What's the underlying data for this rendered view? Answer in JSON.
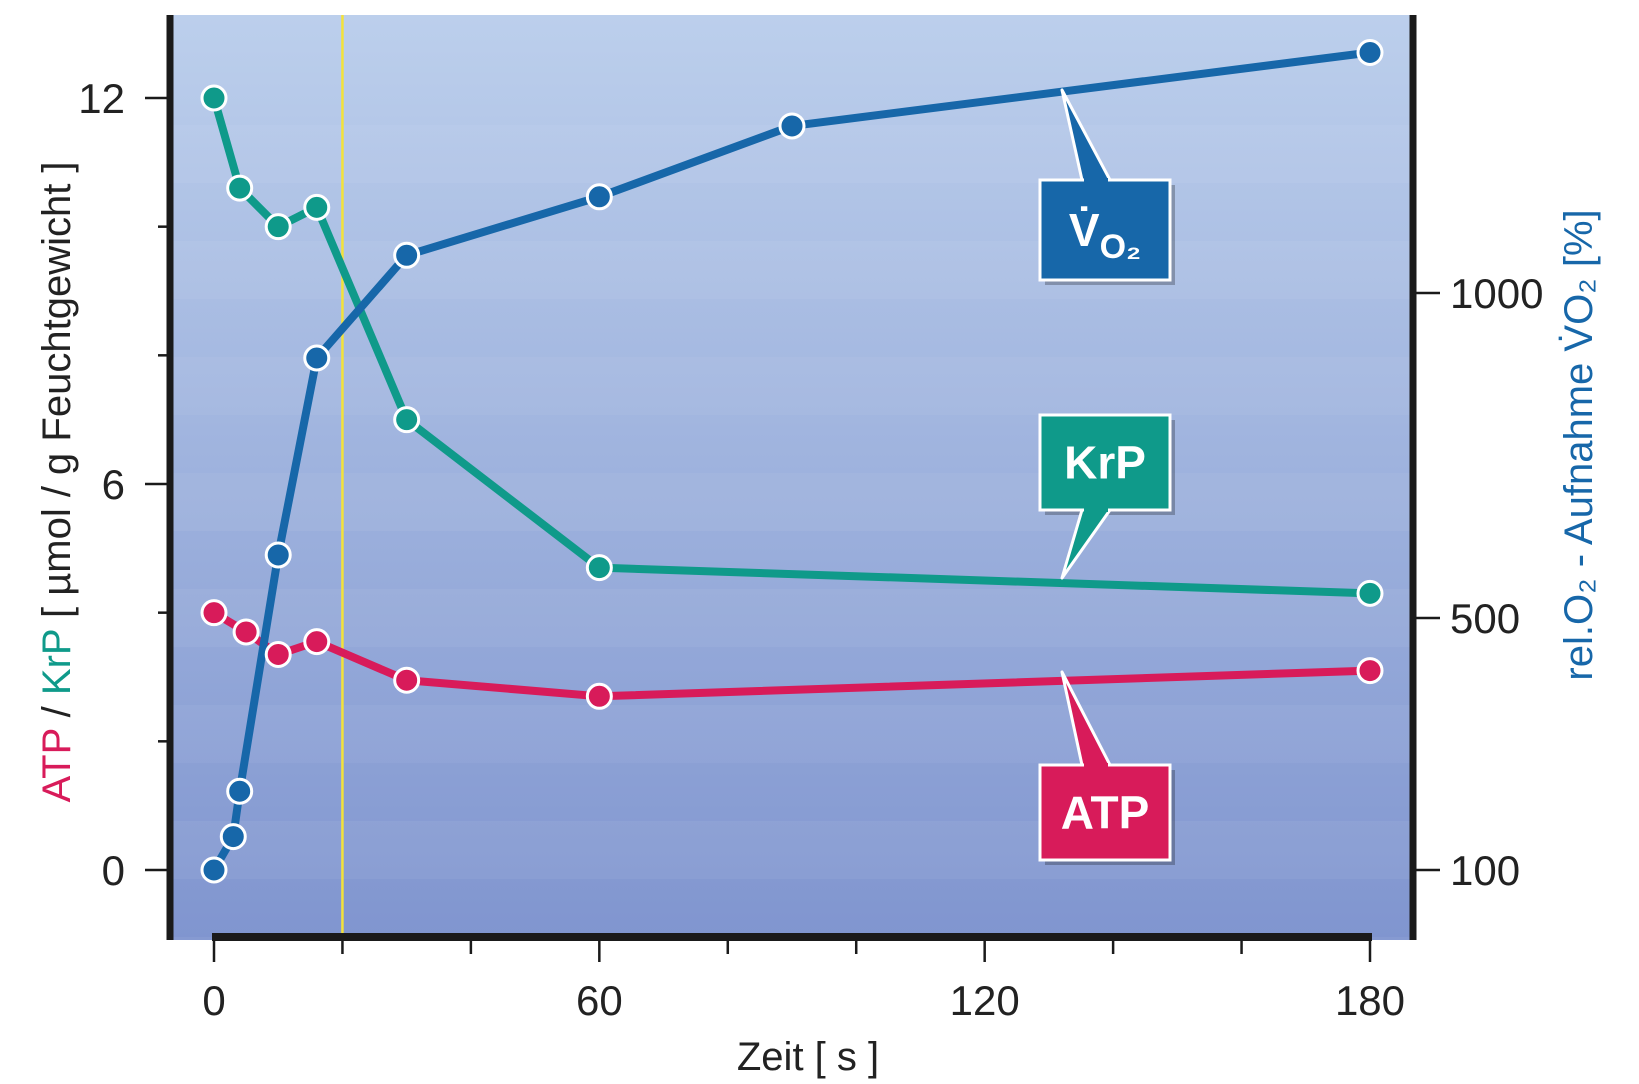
{
  "chart_data": {
    "type": "line",
    "title": "",
    "xlabel": "Zeit [ s ]",
    "ylabel_left_parts": [
      {
        "text": "ATP",
        "color": "#d81b5a"
      },
      {
        "text": " / ",
        "color": "#222222"
      },
      {
        "text": "KrP",
        "color": "#0f9a8a"
      },
      {
        "text": " [ µmol / g Feuchtgewicht ]",
        "color": "#222222"
      }
    ],
    "ylabel_right": "rel.O₂ - Aufnahme V̇O₂ [%]",
    "ylabel_right_color": "#1767a9",
    "x_ticks": [
      0,
      60,
      120,
      180
    ],
    "x_tick_labels": [
      "0",
      "60",
      "120",
      "180"
    ],
    "xlim": [
      0,
      180
    ],
    "y_left_ticks": [
      0,
      6,
      12
    ],
    "y_left_tick_labels": [
      "0",
      "6",
      "12"
    ],
    "y_left_lim": [
      0,
      12
    ],
    "y_right_ticks": [
      100,
      500,
      1000
    ],
    "y_right_tick_labels": [
      "100",
      "500",
      "1000"
    ],
    "y_right_lim": [
      100,
      1300
    ],
    "vertical_marker_x": 20,
    "series": [
      {
        "name": "KrP",
        "axis": "left",
        "color": "#0f9a8a",
        "x": [
          0,
          4,
          10,
          16,
          30,
          60,
          180
        ],
        "y": [
          12.0,
          10.6,
          10.0,
          10.3,
          7.0,
          4.7,
          4.3
        ]
      },
      {
        "name": "ATP",
        "axis": "left",
        "color": "#d81b5a",
        "x": [
          0,
          5,
          10,
          16,
          30,
          60,
          180
        ],
        "y": [
          4.0,
          3.7,
          3.35,
          3.55,
          2.95,
          2.7,
          3.1
        ]
      },
      {
        "name": "V̇O₂",
        "axis": "right",
        "color": "#1767a9",
        "x": [
          0,
          3,
          4,
          10,
          16,
          30,
          60,
          90,
          180
        ],
        "y": [
          100,
          153,
          225,
          597,
          900,
          1058,
          1148,
          1257,
          1370
        ]
      }
    ],
    "callouts": [
      {
        "series": "V̇O₂",
        "label_main": "V̇",
        "label_sub": "O₂",
        "color": "#1767a9"
      },
      {
        "series": "KrP",
        "label_main": "KrP",
        "label_sub": "",
        "color": "#0f9a8a"
      },
      {
        "series": "ATP",
        "label_main": "ATP",
        "label_sub": "",
        "color": "#d81b5a"
      }
    ],
    "grid": false,
    "legend": "callouts"
  }
}
